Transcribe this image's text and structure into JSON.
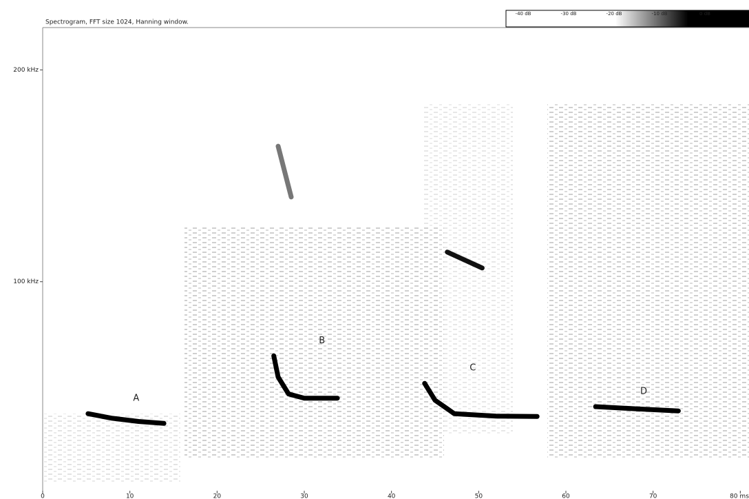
{
  "chart_data": {
    "type": "spectrogram",
    "title": "Spectrogram, FFT size 1024, Hanning window.",
    "xlim": [
      0,
      81
    ],
    "ylim": [
      0,
      220
    ],
    "xticks": [
      0,
      10,
      20,
      30,
      40,
      50,
      60,
      70,
      {
        "value": 80,
        "label": "80 ms"
      }
    ],
    "yticks": [
      {
        "value": 100,
        "label": "100 kHz"
      },
      {
        "value": 200,
        "label": "200 kHz"
      }
    ],
    "colorbar": [
      "-40 dB",
      "-30 dB",
      "-20 dB",
      "-10 dB",
      "0 dB"
    ],
    "series": [
      {
        "name": "A",
        "color": "#000000",
        "x": [
          5.2,
          8,
          11,
          13.9
        ],
        "values": [
          37.7,
          35.5,
          34,
          33.1
        ]
      },
      {
        "name": "B",
        "color": "#000000",
        "x": [
          26.5,
          27,
          28.2,
          30,
          33.8
        ],
        "values": [
          65,
          55,
          47,
          45,
          45
        ]
      },
      {
        "name": "C",
        "color": "#000000",
        "x": [
          43.8,
          45,
          47.2,
          52,
          56.7
        ],
        "values": [
          52,
          44,
          37.7,
          36.5,
          36.4
        ]
      },
      {
        "name": "D",
        "color": "#000000",
        "x": [
          63.4,
          68,
          72.9
        ],
        "values": [
          41,
          40,
          39
        ]
      },
      {
        "color": "#777777",
        "x": [
          27,
          28.5
        ],
        "values": [
          164,
          140
        ]
      },
      {
        "color": "#111111",
        "x": [
          46.4,
          50.4
        ],
        "values": [
          114,
          106.5
        ]
      }
    ]
  }
}
